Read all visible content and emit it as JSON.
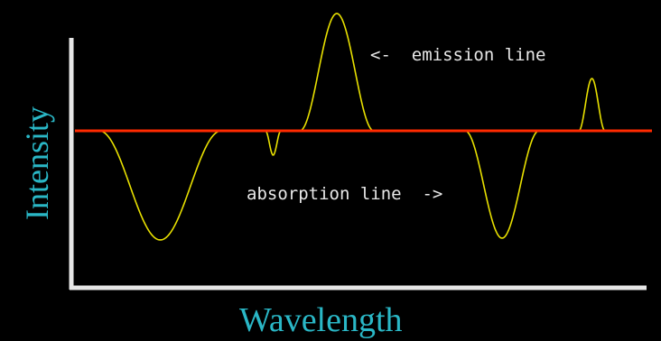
{
  "diagram": {
    "xlabel": "Wavelength",
    "ylabel": "Intensity",
    "annotations": {
      "emission": "<-  emission line",
      "absorption": "absorption line  ->"
    },
    "colors": {
      "background": "#000000",
      "axes": "#e6e6e6",
      "spectrum": "#e8e000",
      "continuum": "#ff2a00",
      "axis_label": "#2ab7c6",
      "annotation_text": "#e8e8e8"
    }
  }
}
